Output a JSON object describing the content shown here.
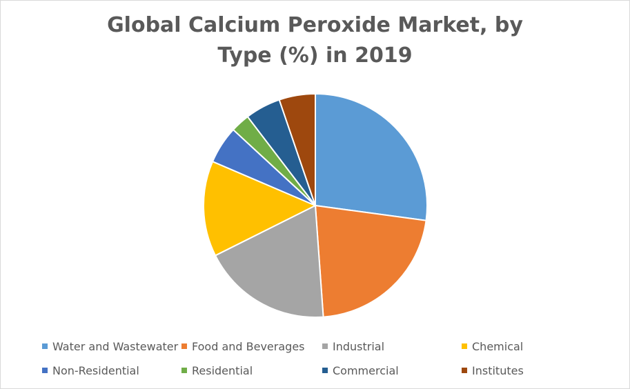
{
  "chart_data": {
    "type": "pie",
    "title_line1": "Global Calcium Peroxide Market, by",
    "title_line2": "Type (%) in 2019",
    "legend_placement": "bottom",
    "slices": [
      {
        "name": "Water and Wastewater",
        "value": 27.5,
        "color": "#5B9BD5"
      },
      {
        "name": "Food and Beverages",
        "value": 22.0,
        "color": "#ED7D31"
      },
      {
        "name": "Industrial",
        "value": 19.0,
        "color": "#A5A5A5"
      },
      {
        "name": "Chemical",
        "value": 14.0,
        "color": "#FFC000"
      },
      {
        "name": "Non-Residential",
        "value": 5.5,
        "color": "#4472C4"
      },
      {
        "name": "Residential",
        "value": 2.8,
        "color": "#70AD47"
      },
      {
        "name": "Commercial",
        "value": 5.2,
        "color": "#255E91"
      },
      {
        "name": "Institutes",
        "value": 5.3,
        "color": "#9E480E"
      }
    ]
  }
}
